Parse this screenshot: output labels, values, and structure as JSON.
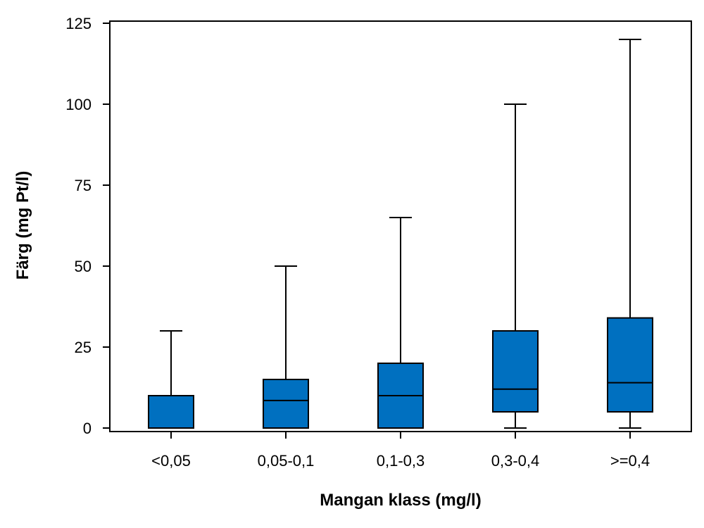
{
  "chart_data": {
    "type": "boxplot",
    "xlabel": "Mangan klass (mg/l)",
    "ylabel": "Färg (mg Pt/l)",
    "ylim": [
      0,
      125
    ],
    "yticks": [
      0,
      25,
      50,
      75,
      100,
      125
    ],
    "grid": false,
    "box_color": "#0070c0",
    "categories": [
      "<0,05",
      "0,05-0,1",
      "0,1-0,3",
      "0,3-0,4",
      ">=0,4"
    ],
    "boxes": [
      {
        "min": 0,
        "q1": 0,
        "median": 0,
        "q3": 10,
        "max": 30
      },
      {
        "min": 0,
        "q1": 0,
        "median": 8.5,
        "q3": 15,
        "max": 50
      },
      {
        "min": 0,
        "q1": 0,
        "median": 10,
        "q3": 20,
        "max": 65
      },
      {
        "min": 0,
        "q1": 5,
        "median": 12,
        "q3": 30,
        "max": 100
      },
      {
        "min": 0,
        "q1": 5,
        "median": 14,
        "q3": 34,
        "max": 120
      }
    ]
  }
}
